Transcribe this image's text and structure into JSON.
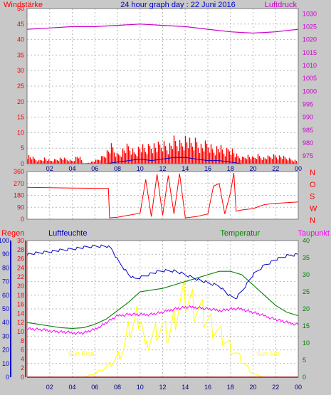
{
  "title": "24 hour graph day : 22 Juni 2016",
  "colors": {
    "wind": "#ff0000",
    "wind_avg": "#0000cc",
    "pressure": "#cc00cc",
    "direction": "#ff0000",
    "rain": "#ff0000",
    "humidity": "#0000cc",
    "temperature": "#008000",
    "dewpoint": "#ff00ff",
    "solar": "#ffff00",
    "sun_marker": "#ffff00",
    "hour_labels": "#000080"
  },
  "hour_labels": [
    "02",
    "04",
    "06",
    "08",
    "10",
    "12",
    "14",
    "16",
    "18",
    "20",
    "22",
    "00"
  ],
  "chart_data": [
    {
      "type": "line",
      "panel": "top",
      "series": [
        {
          "name": "Windstärke",
          "axis": "left",
          "points": [
            [
              0,
              3
            ],
            [
              0.5,
              2
            ],
            [
              1,
              1
            ],
            [
              1.5,
              2
            ],
            [
              2,
              1
            ],
            [
              3,
              2
            ],
            [
              4,
              1
            ],
            [
              4.5,
              3
            ],
            [
              5,
              0
            ],
            [
              6,
              1
            ],
            [
              6.5,
              2
            ],
            [
              7,
              4
            ],
            [
              7.5,
              6
            ],
            [
              8,
              3
            ],
            [
              8.5,
              5
            ],
            [
              9,
              6
            ],
            [
              9.5,
              4
            ],
            [
              10,
              6
            ],
            [
              10.5,
              5
            ],
            [
              11,
              7
            ],
            [
              11.5,
              6
            ],
            [
              12,
              7
            ],
            [
              12.5,
              6
            ],
            [
              13,
              8
            ],
            [
              13.5,
              7
            ],
            [
              14,
              9
            ],
            [
              14.5,
              7
            ],
            [
              15,
              8
            ],
            [
              15.5,
              6
            ],
            [
              16,
              7
            ],
            [
              16.5,
              5
            ],
            [
              17,
              6
            ],
            [
              17.5,
              4
            ],
            [
              18,
              6
            ],
            [
              18.5,
              3
            ],
            [
              19,
              2
            ],
            [
              19.5,
              3
            ],
            [
              20,
              2
            ],
            [
              20.5,
              3
            ],
            [
              21,
              2
            ],
            [
              22,
              3
            ],
            [
              23,
              2
            ],
            [
              24,
              1
            ]
          ]
        },
        {
          "name": "",
          "axis": "left",
          "points": [
            [
              0,
              0
            ],
            [
              7,
              0
            ],
            [
              8,
              0.5
            ],
            [
              9,
              1
            ],
            [
              10,
              1.5
            ],
            [
              11,
              1
            ],
            [
              12,
              1.5
            ],
            [
              13,
              2
            ],
            [
              14,
              2
            ],
            [
              15,
              1.5
            ],
            [
              16,
              1
            ],
            [
              17,
              1
            ],
            [
              18,
              0.5
            ],
            [
              19,
              0
            ],
            [
              24,
              0
            ]
          ]
        },
        {
          "name": "Luftdruck",
          "axis": "right",
          "points": [
            [
              0,
              1024
            ],
            [
              2,
              1024.5
            ],
            [
              4,
              1025
            ],
            [
              6,
              1025
            ],
            [
              8,
              1025.5
            ],
            [
              10,
              1026
            ],
            [
              12,
              1025.5
            ],
            [
              14,
              1025
            ],
            [
              16,
              1024
            ],
            [
              18,
              1023
            ],
            [
              20,
              1022.5
            ],
            [
              22,
              1023
            ],
            [
              24,
              1024
            ]
          ]
        }
      ],
      "x_range": [
        0,
        24
      ],
      "left_axis": {
        "label": "Windstärke",
        "range": [
          0,
          50
        ],
        "ticks": [
          0,
          5,
          10,
          15,
          20,
          25,
          30,
          35,
          40,
          45,
          50
        ]
      },
      "right_axis": {
        "label": "Luftdruck",
        "range": [
          972,
          1032
        ],
        "ticks": [
          975,
          980,
          985,
          990,
          995,
          1000,
          1005,
          1010,
          1015,
          1020,
          1025,
          1030
        ]
      }
    },
    {
      "type": "line",
      "panel": "middle",
      "series": [
        {
          "name": "",
          "axis": "left",
          "points": [
            [
              0,
              240
            ],
            [
              4,
              235
            ],
            [
              7.2,
              232
            ],
            [
              7.3,
              10
            ],
            [
              8,
              15
            ],
            [
              9,
              30
            ],
            [
              10,
              45
            ],
            [
              10.5,
              300
            ],
            [
              11,
              20
            ],
            [
              11.5,
              340
            ],
            [
              12,
              30
            ],
            [
              12.5,
              330
            ],
            [
              13,
              40
            ],
            [
              13.5,
              345
            ],
            [
              14,
              10
            ],
            [
              15,
              20
            ],
            [
              16,
              40
            ],
            [
              16.5,
              250
            ],
            [
              17,
              270
            ],
            [
              17.5,
              40
            ],
            [
              18,
              200
            ],
            [
              18.3,
              350
            ],
            [
              18.5,
              60
            ],
            [
              19,
              70
            ],
            [
              20,
              80
            ],
            [
              21,
              110
            ],
            [
              22,
              120
            ],
            [
              24,
              130
            ]
          ]
        }
      ],
      "x_range": [
        0,
        24
      ],
      "left_axis": {
        "range": [
          0,
          360
        ],
        "ticks": [
          0,
          90,
          180,
          270,
          360
        ]
      },
      "right_axis": {
        "labels": [
          "N",
          "W",
          "S",
          "O",
          "N"
        ]
      }
    },
    {
      "type": "line",
      "panel": "bottom",
      "series": [
        {
          "name": "Regen",
          "axis": "left-rain",
          "points": [
            [
              0,
              0
            ],
            [
              24,
              0
            ]
          ]
        },
        {
          "name": "Luftfeuchte",
          "axis": "left-humidity",
          "points": [
            [
              0,
              90
            ],
            [
              1,
              91
            ],
            [
              2,
              92
            ],
            [
              3,
              93
            ],
            [
              4,
              94
            ],
            [
              5,
              95
            ],
            [
              6,
              96
            ],
            [
              7,
              96
            ],
            [
              7.5,
              94
            ],
            [
              8,
              86
            ],
            [
              9,
              75
            ],
            [
              9.5,
              72
            ],
            [
              10,
              73
            ],
            [
              11,
              76
            ],
            [
              12,
              78
            ],
            [
              13,
              78
            ],
            [
              14,
              75
            ],
            [
              15,
              72
            ],
            [
              16,
              69
            ],
            [
              17,
              67
            ],
            [
              18,
              59
            ],
            [
              18.5,
              58
            ],
            [
              19,
              63
            ],
            [
              20,
              75
            ],
            [
              21,
              82
            ],
            [
              22,
              86
            ],
            [
              23,
              89
            ],
            [
              24,
              90
            ]
          ]
        },
        {
          "name": "Temperatur",
          "axis": "right",
          "points": [
            [
              0,
              16
            ],
            [
              1,
              15.5
            ],
            [
              2,
              15
            ],
            [
              3,
              14.5
            ],
            [
              4,
              14.3
            ],
            [
              5,
              14.5
            ],
            [
              6,
              15.5
            ],
            [
              7,
              17
            ],
            [
              8,
              19.5
            ],
            [
              9,
              22
            ],
            [
              10,
              25
            ],
            [
              11,
              25.5
            ],
            [
              12,
              26
            ],
            [
              13,
              27
            ],
            [
              14,
              28
            ],
            [
              15,
              29
            ],
            [
              16,
              30
            ],
            [
              17,
              31
            ],
            [
              18,
              31
            ],
            [
              19,
              30
            ],
            [
              20,
              27
            ],
            [
              21,
              24
            ],
            [
              22,
              21
            ],
            [
              23,
              19
            ],
            [
              24,
              18
            ]
          ]
        },
        {
          "name": "Taupunkt",
          "axis": "right",
          "points": [
            [
              0,
              14.3
            ],
            [
              1,
              14
            ],
            [
              2,
              13.6
            ],
            [
              3,
              13.3
            ],
            [
              4,
              13
            ],
            [
              5,
              13
            ],
            [
              6,
              14
            ],
            [
              7,
              16
            ],
            [
              8,
              18
            ],
            [
              9,
              18.5
            ],
            [
              10,
              18.3
            ],
            [
              11,
              18.5
            ],
            [
              12,
              19
            ],
            [
              13,
              20
            ],
            [
              14,
              20.5
            ],
            [
              15,
              20.5
            ],
            [
              16,
              20
            ],
            [
              17,
              19.5
            ],
            [
              18,
              20
            ],
            [
              19,
              20
            ],
            [
              20,
              19
            ],
            [
              21,
              18
            ],
            [
              22,
              17
            ],
            [
              23,
              16
            ],
            [
              24,
              15.5
            ]
          ]
        },
        {
          "name": "",
          "axis": "right-solar",
          "points": [
            [
              0,
              0
            ],
            [
              5,
              0
            ],
            [
              6,
              1
            ],
            [
              7,
              3
            ],
            [
              7.5,
              4
            ],
            [
              8,
              6
            ],
            [
              8.5,
              8
            ],
            [
              9,
              14
            ],
            [
              9.5,
              16
            ],
            [
              10,
              20
            ],
            [
              10.5,
              8
            ],
            [
              11,
              12
            ],
            [
              11.5,
              14
            ],
            [
              12,
              15
            ],
            [
              12.5,
              12
            ],
            [
              13,
              17
            ],
            [
              13.5,
              22
            ],
            [
              14,
              24
            ],
            [
              15,
              21
            ],
            [
              16,
              17
            ],
            [
              17,
              13
            ],
            [
              18,
              9
            ],
            [
              19,
              5
            ],
            [
              19.5,
              3
            ],
            [
              20,
              1
            ],
            [
              21,
              0
            ],
            [
              24,
              0
            ]
          ]
        }
      ],
      "x_range": [
        0,
        24
      ],
      "rain_axis": {
        "label": "Regen",
        "range": [
          0,
          30
        ],
        "ticks": [
          0,
          2,
          4,
          6,
          8,
          10,
          12,
          14,
          16,
          18,
          20,
          22,
          24,
          26,
          28,
          30
        ]
      },
      "humidity_axis": {
        "label": "Luftfeuchte",
        "range": [
          0,
          100
        ],
        "ticks": [
          0,
          10,
          20,
          30,
          40,
          50,
          60,
          70,
          80,
          90,
          100
        ]
      },
      "temperature_axis": {
        "label": "Temperatur",
        "range": [
          0,
          40
        ],
        "ticks": [
          0,
          5,
          10,
          15,
          20,
          25,
          30,
          35,
          40
        ]
      },
      "dewpoint_label": "Taupunkt",
      "annotations": [
        {
          "text": "Sun Rise",
          "x": 4.8
        },
        {
          "text": "Sun Set",
          "x": 21.3
        }
      ]
    }
  ]
}
